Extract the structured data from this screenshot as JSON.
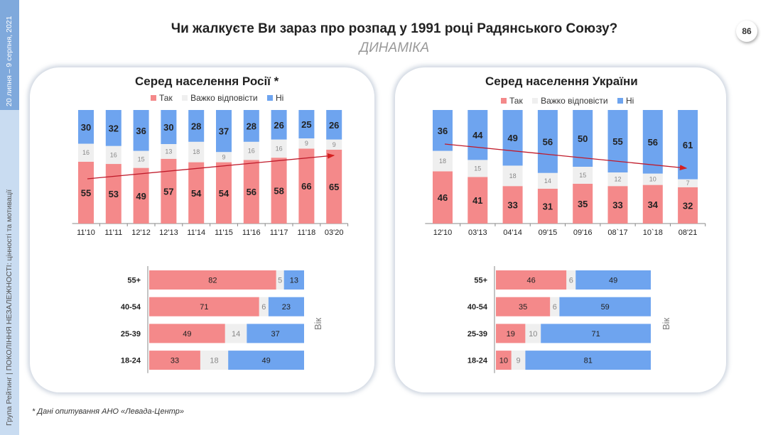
{
  "sidebar": {
    "date": "20 липня – 9 серпня, 2021",
    "footer": "Група Рейтинг | ПОКОЛІННЯ НЕЗАЛЕЖНОСТІ: цінності та мотивації"
  },
  "header": {
    "title": "Чи жалкуєте Ви зараз про розпад у 1991 році Радянського Союзу?",
    "subtitle": "ДИНАМІКА",
    "page_number": "86"
  },
  "footnote": "* Дані опитування АНО «Левада-Центр»",
  "colors": {
    "yes": "#f4898a",
    "hard": "#efefef",
    "no": "#6ea4ef"
  },
  "legend": [
    "Так",
    "Важко відповісти",
    "Ні"
  ],
  "chart_data": [
    {
      "type": "bar",
      "stacked": true,
      "title": "Серед населення Росії *",
      "categories": [
        "11'10",
        "11'11",
        "12'12",
        "12'13",
        "11'14",
        "11'15",
        "11'16",
        "11'17",
        "11'18",
        "03'20"
      ],
      "series": [
        {
          "name": "Так",
          "values": [
            55,
            53,
            49,
            57,
            54,
            54,
            56,
            58,
            66,
            65
          ]
        },
        {
          "name": "Важко відповісти",
          "values": [
            16,
            16,
            15,
            13,
            18,
            9,
            16,
            16,
            9,
            9
          ]
        },
        {
          "name": "Ні",
          "values": [
            30,
            32,
            36,
            30,
            28,
            37,
            28,
            26,
            25,
            26
          ]
        }
      ],
      "trend": "up"
    },
    {
      "type": "bar",
      "stacked": true,
      "title": "Серед населення України",
      "categories": [
        "12'10",
        "03'13",
        "04'14",
        "09'15",
        "09'16",
        "08`17",
        "10`18",
        "08'21"
      ],
      "series": [
        {
          "name": "Так",
          "values": [
            46,
            41,
            33,
            31,
            35,
            33,
            34,
            32
          ]
        },
        {
          "name": "Важко відповісти",
          "values": [
            18,
            15,
            18,
            14,
            15,
            12,
            10,
            7
          ]
        },
        {
          "name": "Ні",
          "values": [
            36,
            44,
            49,
            56,
            50,
            55,
            56,
            61
          ]
        }
      ],
      "trend": "down"
    },
    {
      "type": "bar",
      "orientation": "horizontal",
      "stacked": true,
      "ylabel": "Вік",
      "categories": [
        "55+",
        "40-54",
        "25-39",
        "18-24"
      ],
      "series": [
        {
          "name": "Так",
          "values": [
            82,
            71,
            49,
            33
          ]
        },
        {
          "name": "Важко відповісти",
          "values": [
            5,
            6,
            14,
            18
          ]
        },
        {
          "name": "Ні",
          "values": [
            13,
            23,
            37,
            49
          ]
        }
      ]
    },
    {
      "type": "bar",
      "orientation": "horizontal",
      "stacked": true,
      "ylabel": "Вік",
      "categories": [
        "55+",
        "40-54",
        "25-39",
        "18-24"
      ],
      "series": [
        {
          "name": "Так",
          "values": [
            46,
            35,
            19,
            10
          ]
        },
        {
          "name": "Важко відповісти",
          "values": [
            6,
            6,
            10,
            9
          ]
        },
        {
          "name": "Ні",
          "values": [
            49,
            59,
            71,
            81
          ]
        }
      ]
    }
  ]
}
